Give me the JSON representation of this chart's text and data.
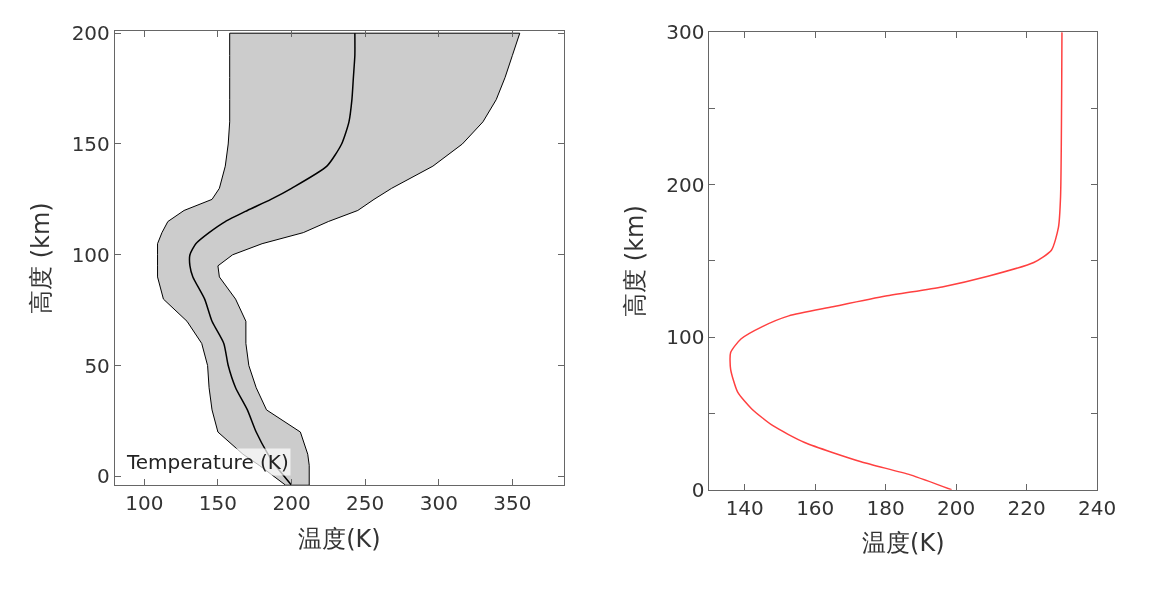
{
  "chart_data": [
    {
      "type": "line",
      "orientation": "horizontal",
      "xlabel": "温度(K)",
      "ylabel": "高度 (km)",
      "xlim": [
        80,
        385
      ],
      "ylim": [
        -4,
        201
      ],
      "xticks": [
        100,
        150,
        200,
        250,
        300,
        350
      ],
      "yticks": [
        0,
        50,
        100,
        150,
        200
      ],
      "annotations": [
        "Temperature (K)"
      ],
      "x": [
        -4,
        5,
        10,
        20,
        30,
        40,
        50,
        60,
        70,
        80,
        90,
        95,
        100,
        105,
        110,
        115,
        120,
        125,
        130,
        140,
        150,
        160,
        170,
        180,
        190,
        200
      ],
      "series": [
        {
          "color": "#000000",
          "values": [
            200,
            189,
            184,
            176,
            170,
            162,
            157,
            154,
            146,
            141,
            133,
            131,
            131,
            135,
            144,
            155,
            170,
            186,
            200,
            224,
            234,
            239,
            241,
            242,
            243,
            243
          ],
          "lower": [
            196,
            178,
            167,
            150,
            146,
            144,
            143,
            139,
            129,
            113,
            109,
            109,
            109,
            109,
            112,
            116,
            127,
            146,
            151,
            155,
            157,
            158,
            158,
            158,
            158,
            158
          ],
          "upper": [
            212,
            212,
            211,
            206,
            183,
            176,
            171,
            169,
            169,
            162,
            151,
            150,
            160,
            180,
            208,
            225,
            245,
            256,
            268,
            296,
            316,
            330,
            339,
            345,
            350,
            355
          ]
        }
      ]
    },
    {
      "type": "line",
      "orientation": "horizontal",
      "xlabel": "温度(K)",
      "ylabel": "高度 (km)",
      "xlim": [
        130,
        240
      ],
      "ylim": [
        0,
        300
      ],
      "xticks": [
        140,
        160,
        180,
        200,
        220,
        240
      ],
      "yticks": [
        0,
        {
          "value": 50,
          "label": null
        },
        100,
        {
          "value": 150,
          "label": null
        },
        200,
        {
          "value": 250,
          "label": null
        },
        300
      ],
      "x": [
        0,
        9.8,
        18.4,
        31,
        42,
        53,
        64,
        79,
        90,
        99,
        107,
        114,
        120,
        127,
        133,
        140,
        149,
        157,
        172,
        192,
        300
      ],
      "series": [
        {
          "color": "#ff4040",
          "values": [
            198.7,
            187,
            173,
            157,
            148,
            142,
            138,
            136,
            136,
            139,
            145,
            152.5,
            165,
            180,
            196,
            209,
            222,
            227,
            229,
            229.6,
            230
          ]
        }
      ]
    }
  ]
}
